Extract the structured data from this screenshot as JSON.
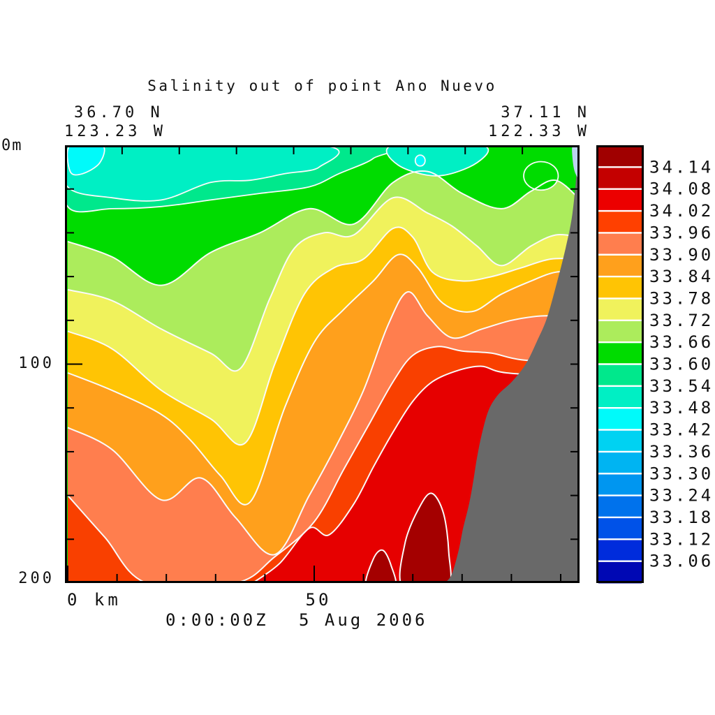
{
  "title": "Salinity out of point Ano Nuevo",
  "header": {
    "left_lat": "36.70 N",
    "left_lon": "123.23 W",
    "right_lat": "37.11 N",
    "right_lon": "122.33 W"
  },
  "axes": {
    "depth_top_label": "0m",
    "depth_tick_100": "100",
    "depth_tick_200": "200",
    "distance_origin_label": "0 km",
    "distance_tick_50": "50"
  },
  "footer": {
    "time_label": "0:00:00Z",
    "date_label": "5 Aug 2006"
  },
  "colorbar": {
    "labels": [
      "34.14",
      "34.08",
      "34.02",
      "33.96",
      "33.90",
      "33.84",
      "33.78",
      "33.72",
      "33.66",
      "33.60",
      "33.54",
      "33.48",
      "33.42",
      "33.36",
      "33.30",
      "33.24",
      "33.18",
      "33.12",
      "33.06"
    ],
    "colors": [
      "#A00000",
      "#C40000",
      "#EC0000",
      "#FF4000",
      "#FF7E4E",
      "#FFA01C",
      "#FFC404",
      "#F0F25C",
      "#ACEC5C",
      "#00DC00",
      "#00E88C",
      "#00EFC4",
      "#00FAFA",
      "#00D2F2",
      "#00B4F2",
      "#0096F0",
      "#0072EC",
      "#0052E8",
      "#002CDC",
      "#0008B4"
    ],
    "frame_color": "#000000",
    "separator_color": "#FFFFFF"
  },
  "chart_data": {
    "type": "filled_contour_section",
    "variable": "salinity",
    "title": "Salinity out of point Ano Nuevo",
    "x_units": "km",
    "y_units": "m depth",
    "x_range": [
      0,
      104
    ],
    "y_range": [
      0,
      200
    ],
    "levels_min": 33.06,
    "levels_max": 34.14,
    "contour_interval": 0.06,
    "contour_line_color": "#FAFAFA",
    "background_band": {
      "level_range": [
        33.6,
        33.66
      ],
      "color": "#00DC00"
    },
    "bands": [
      {
        "level": 33.66,
        "color": "#ACEC5C",
        "boundary": [
          [
            0,
            44
          ],
          [
            9,
            51
          ],
          [
            19,
            64
          ],
          [
            29,
            49
          ],
          [
            39,
            40
          ],
          [
            49,
            29
          ],
          [
            58,
            36
          ],
          [
            66,
            17
          ],
          [
            73,
            12
          ],
          [
            80,
            22
          ],
          [
            88,
            29
          ],
          [
            94,
            21
          ],
          [
            99,
            16
          ],
          [
            104,
            25
          ]
        ]
      },
      {
        "level": 33.72,
        "color": "#F0F25C",
        "boundary": [
          [
            0,
            66
          ],
          [
            9,
            71
          ],
          [
            19,
            84
          ],
          [
            29,
            95
          ],
          [
            35,
            102
          ],
          [
            41,
            70
          ],
          [
            46,
            47
          ],
          [
            52,
            40
          ],
          [
            58,
            41
          ],
          [
            66,
            24
          ],
          [
            73,
            31
          ],
          [
            78,
            37
          ],
          [
            83,
            46
          ],
          [
            88,
            55
          ],
          [
            94,
            46
          ],
          [
            99,
            41
          ],
          [
            104,
            42
          ]
        ]
      },
      {
        "level": 33.78,
        "color": "#FFC404",
        "boundary": [
          [
            0,
            85
          ],
          [
            9,
            93
          ],
          [
            19,
            112
          ],
          [
            29,
            125
          ],
          [
            36,
            136
          ],
          [
            42,
            100
          ],
          [
            48,
            68
          ],
          [
            54,
            56
          ],
          [
            60,
            52
          ],
          [
            66,
            38
          ],
          [
            70,
            42
          ],
          [
            74,
            58
          ],
          [
            80,
            62
          ],
          [
            86,
            60
          ],
          [
            92,
            56
          ],
          [
            98,
            52
          ],
          [
            104,
            52
          ]
        ]
      },
      {
        "level": 33.84,
        "color": "#FFA01C",
        "boundary": [
          [
            0,
            104
          ],
          [
            9,
            112
          ],
          [
            19,
            123
          ],
          [
            25,
            135
          ],
          [
            31,
            151
          ],
          [
            37,
            163
          ],
          [
            44,
            120
          ],
          [
            50,
            90
          ],
          [
            56,
            75
          ],
          [
            62,
            62
          ],
          [
            67,
            50
          ],
          [
            71,
            56
          ],
          [
            76,
            72
          ],
          [
            82,
            76
          ],
          [
            88,
            68
          ],
          [
            94,
            62
          ],
          [
            99,
            58
          ],
          [
            104,
            58
          ]
        ]
      },
      {
        "level": 33.9,
        "color": "#FF7E4E",
        "boundary": [
          [
            0,
            129
          ],
          [
            9,
            139
          ],
          [
            19,
            162
          ],
          [
            27,
            152
          ],
          [
            34,
            170
          ],
          [
            42,
            187
          ],
          [
            49,
            160
          ],
          [
            55,
            135
          ],
          [
            60,
            112
          ],
          [
            65,
            82
          ],
          [
            69,
            67
          ],
          [
            73,
            78
          ],
          [
            78,
            88
          ],
          [
            84,
            84
          ],
          [
            90,
            80
          ],
          [
            96,
            78
          ],
          [
            104,
            78
          ]
        ]
      },
      {
        "level": 33.96,
        "color": "#F94000",
        "boundary": [
          [
            0,
            160
          ],
          [
            7.5,
            179
          ],
          [
            16,
            200
          ],
          [
            34,
            200
          ],
          [
            42,
            188
          ],
          [
            50,
            172
          ],
          [
            56,
            148
          ],
          [
            61,
            128
          ],
          [
            66,
            108
          ],
          [
            70,
            96
          ],
          [
            75,
            92
          ],
          [
            80,
            94
          ],
          [
            86,
            95
          ],
          [
            92,
            98
          ],
          [
            104,
            100
          ]
        ]
      },
      {
        "level": 34.02,
        "color": "#E60000",
        "boundary": [
          [
            37.5,
            200
          ],
          [
            43,
            191
          ],
          [
            49,
            175
          ],
          [
            53,
            178
          ],
          [
            58,
            164
          ],
          [
            62,
            147
          ],
          [
            66,
            131
          ],
          [
            70,
            117
          ],
          [
            74,
            108
          ],
          [
            79,
            103
          ],
          [
            84,
            101
          ],
          [
            89,
            104
          ],
          [
            104,
            106
          ]
        ]
      }
    ],
    "patches": [
      {
        "name": "spring-green-surface-layer",
        "level_range": [
          33.54,
          33.6
        ],
        "color": "#00E88C",
        "points": [
          [
            0,
            0
          ],
          [
            62,
            0
          ],
          [
            62,
            6
          ],
          [
            55,
            13
          ],
          [
            49,
            19
          ],
          [
            39,
            22
          ],
          [
            29,
            25
          ],
          [
            19,
            28
          ],
          [
            9,
            29
          ],
          [
            0,
            28
          ]
        ]
      },
      {
        "name": "turquoise-surface-layer",
        "level_range": [
          33.48,
          33.54
        ],
        "color": "#00EFC4",
        "points": [
          [
            0,
            0
          ],
          [
            51,
            0
          ],
          [
            51,
            10
          ],
          [
            44,
            13
          ],
          [
            37,
            16
          ],
          [
            29,
            17
          ],
          [
            19,
            25
          ],
          [
            9,
            24
          ],
          [
            0,
            19
          ]
        ]
      },
      {
        "name": "cyan-surface-patch",
        "level_range": [
          33.42,
          33.48
        ],
        "color": "#00FAFA",
        "points": [
          [
            0.5,
            0
          ],
          [
            7,
            0
          ],
          [
            6.5,
            8
          ],
          [
            3,
            13
          ],
          [
            0.5,
            12
          ]
        ]
      },
      {
        "name": "turquoise-surface-patch-2",
        "level_range": [
          33.48,
          33.54
        ],
        "color": "#00EFC4",
        "points": [
          [
            66,
            0
          ],
          [
            84,
            0
          ],
          [
            83,
            8
          ],
          [
            75,
            14
          ],
          [
            67,
            9
          ]
        ]
      }
    ],
    "ellipse_patches": [
      {
        "name": "cyan-dot",
        "color": "#00FAFA",
        "cx": 71.5,
        "cy": 7,
        "rx": 1.0,
        "ry": 2.5
      },
      {
        "name": "green-pocket-nearshore",
        "color": "#00DC00",
        "cx": 96,
        "cy": 14,
        "rx": 3.5,
        "ry": 6.5
      }
    ],
    "high_salinity_blobs": [
      {
        "name": "maroon-core-small",
        "level": 34.14,
        "color": "#A40000",
        "points": [
          [
            60.6,
            202
          ],
          [
            62,
            189
          ],
          [
            63.9,
            185
          ],
          [
            65.6,
            192
          ],
          [
            66.3,
            202
          ]
        ]
      },
      {
        "name": "maroon-core-large",
        "level": 34.14,
        "color": "#A40000",
        "points": [
          [
            68,
            202
          ],
          [
            68.4,
            182
          ],
          [
            71.2,
            166
          ],
          [
            73.8,
            159
          ],
          [
            76.2,
            168
          ],
          [
            77.3,
            186
          ],
          [
            76.9,
            202
          ]
        ]
      }
    ],
    "land_mask": {
      "color": "#696969",
      "boundary": [
        [
          103.4,
          8
        ],
        [
          102.4,
          31
        ],
        [
          101,
          47
        ],
        [
          99.2,
          63
        ],
        [
          97.2,
          79
        ],
        [
          95.3,
          89
        ],
        [
          92.9,
          100
        ],
        [
          90.1,
          108
        ],
        [
          87.3,
          114
        ],
        [
          85.4,
          121
        ],
        [
          84,
          132
        ],
        [
          83,
          143
        ],
        [
          82.3,
          153
        ],
        [
          81.4,
          164
        ],
        [
          80.2,
          175
        ],
        [
          79.3,
          185
        ],
        [
          77.9,
          196
        ],
        [
          76.5,
          200
        ]
      ]
    },
    "nearshore_sliver": {
      "color": "#BCD2F0",
      "points": [
        [
          102.5,
          0
        ],
        [
          104.5,
          0
        ],
        [
          104.5,
          16
        ],
        [
          103,
          13
        ],
        [
          102.4,
          6
        ]
      ]
    },
    "ticks": {
      "bottom_km_minor": [
        10,
        20,
        30,
        40,
        60,
        70,
        80,
        90,
        100
      ],
      "bottom_km_major": [
        0,
        50
      ],
      "left_m_minor": [
        20,
        40,
        60,
        80,
        120,
        140,
        160,
        180
      ],
      "left_m_major": [
        100
      ],
      "right_m_minor": [
        20,
        40,
        60,
        80,
        100,
        120,
        140,
        160,
        180
      ],
      "top_divisions": 9
    },
    "frame_color": "#000000"
  }
}
